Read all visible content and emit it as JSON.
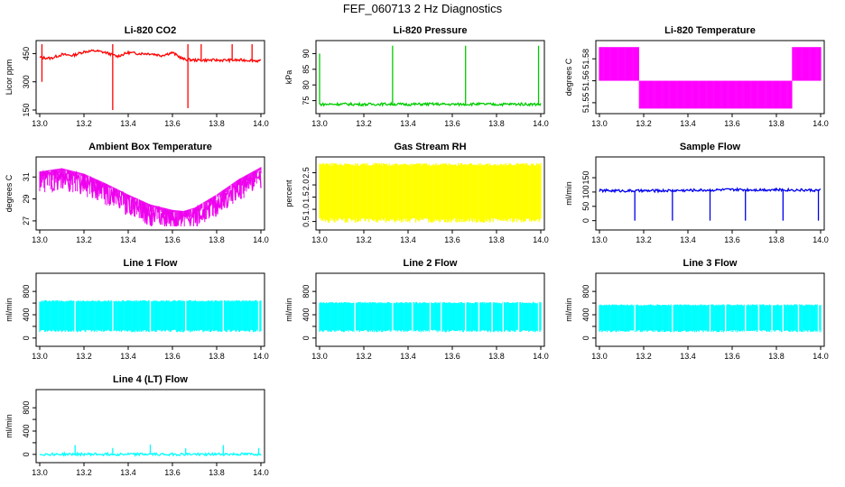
{
  "page_title": "FEF_060713  2 Hz Diagnostics",
  "chart_data": [
    {
      "type": "line",
      "title": "Li-820 CO2",
      "ylabel": "Licor ppm",
      "color": "#ff0000",
      "xlim": [
        13.0,
        14.0
      ],
      "ylim": [
        150,
        500
      ],
      "xticks": [
        13.0,
        13.2,
        13.4,
        13.6,
        13.8,
        14.0
      ],
      "yticks": [
        150,
        300,
        450
      ],
      "ytick_labels": [
        "150",
        "300",
        "450"
      ],
      "series": [
        {
          "x": [
            13.0,
            13.05,
            13.1,
            13.15,
            13.2,
            13.25,
            13.3,
            13.35,
            13.4,
            13.45,
            13.5,
            13.55,
            13.6,
            13.65,
            13.7,
            13.75,
            13.8,
            13.85,
            13.9,
            13.95,
            14.0
          ],
          "y": [
            430,
            425,
            445,
            440,
            460,
            465,
            455,
            435,
            455,
            450,
            450,
            440,
            455,
            420,
            415,
            415,
            415,
            415,
            415,
            415,
            410
          ],
          "spikes": [
            [
              13.01,
              300
            ],
            [
              13.01,
              500
            ],
            [
              13.33,
              150
            ],
            [
              13.33,
              500
            ],
            [
              13.67,
              160
            ],
            [
              13.67,
              500
            ],
            [
              13.73,
              500
            ],
            [
              13.87,
              500
            ],
            [
              13.96,
              500
            ]
          ]
        }
      ]
    },
    {
      "type": "line",
      "title": "Li-820 Pressure",
      "ylabel": "kPa",
      "color": "#00cc00",
      "xlim": [
        13.0,
        14.0
      ],
      "ylim": [
        72,
        93
      ],
      "xticks": [
        13.0,
        13.2,
        13.4,
        13.6,
        13.8,
        14.0
      ],
      "yticks": [
        75,
        80,
        85,
        90
      ],
      "ytick_labels": [
        "75",
        "80",
        "85",
        "90"
      ],
      "series": [
        {
          "x": [
            13.0,
            13.1,
            13.2,
            13.3,
            13.4,
            13.5,
            13.6,
            13.7,
            13.8,
            13.9,
            14.0
          ],
          "y": [
            73.8,
            73.9,
            73.8,
            73.9,
            73.8,
            73.9,
            73.8,
            73.9,
            73.8,
            73.9,
            73.8
          ],
          "spikes": [
            [
              13.0,
              90
            ],
            [
              13.33,
              92.5
            ],
            [
              13.66,
              92.5
            ],
            [
              13.99,
              92.5
            ]
          ]
        }
      ]
    },
    {
      "type": "line",
      "title": "Li-820 Temperature",
      "ylabel": "degrees C",
      "color": "#ff00ff",
      "xlim": [
        13.0,
        14.0
      ],
      "ylim": [
        51.545,
        51.59
      ],
      "xticks": [
        13.0,
        13.2,
        13.4,
        13.6,
        13.8,
        14.0
      ],
      "yticks": [
        51.55,
        51.565,
        51.58
      ],
      "ytick_labels": [
        "51.55",
        "51.56",
        "51.58"
      ],
      "series": [
        {
          "x": [
            13.0,
            13.15,
            13.2,
            13.25,
            13.45,
            13.6,
            13.75,
            13.85,
            13.9,
            14.0
          ],
          "y": [
            51.588,
            51.588,
            51.565,
            51.565,
            51.565,
            51.565,
            51.565,
            51.565,
            51.588,
            51.588
          ],
          "band": [
            51.565,
            51.588
          ]
        }
      ]
    },
    {
      "type": "line",
      "title": "Ambient Box Temperature",
      "ylabel": "degrees C",
      "color": "#ee00ee",
      "xlim": [
        13.0,
        14.0
      ],
      "ylim": [
        26.5,
        32.5
      ],
      "xticks": [
        13.0,
        13.2,
        13.4,
        13.6,
        13.8,
        14.0
      ],
      "yticks": [
        27,
        29,
        31
      ],
      "ytick_labels": [
        "27",
        "29",
        "31"
      ],
      "series": [
        {
          "x": [
            13.0,
            13.1,
            13.2,
            13.3,
            13.4,
            13.5,
            13.6,
            13.65,
            13.7,
            13.8,
            13.9,
            14.0
          ],
          "y": [
            31.5,
            31.8,
            31.3,
            30.4,
            29.4,
            28.5,
            28.0,
            27.9,
            28.2,
            29.4,
            30.8,
            31.9
          ],
          "dips": 2.0
        }
      ]
    },
    {
      "type": "line",
      "title": "Gas Stream RH",
      "ylabel": "percent",
      "color": "#ffff00",
      "xlim": [
        13.0,
        14.0
      ],
      "ylim": [
        0.3,
        3.0
      ],
      "xticks": [
        13.0,
        13.2,
        13.4,
        13.6,
        13.8,
        14.0
      ],
      "yticks": [
        0.5,
        1.0,
        1.5,
        2.0,
        2.5
      ],
      "ytick_labels": [
        "0.5",
        "1.0",
        "1.5",
        "2.0",
        "2.5"
      ],
      "series": [
        {
          "x": [
            13.0,
            14.0
          ],
          "y": [
            2.5,
            2.5
          ],
          "band": [
            0.45,
            2.9
          ]
        }
      ]
    },
    {
      "type": "line",
      "title": "Sample Flow",
      "ylabel": "ml/min",
      "color": "#0000ee",
      "xlim": [
        13.0,
        14.0
      ],
      "ylim": [
        -20,
        210
      ],
      "xticks": [
        13.0,
        13.2,
        13.4,
        13.6,
        13.8,
        14.0
      ],
      "yticks": [
        0,
        50,
        100,
        150
      ],
      "ytick_labels": [
        "0",
        "50",
        "100",
        "150"
      ],
      "series": [
        {
          "x": [
            13.0,
            13.2,
            13.4,
            13.6,
            13.8,
            14.0
          ],
          "y": [
            105,
            104,
            106,
            108,
            108,
            106
          ],
          "spikes": [
            [
              13.16,
              0
            ],
            [
              13.33,
              0
            ],
            [
              13.5,
              0
            ],
            [
              13.66,
              0
            ],
            [
              13.83,
              0
            ],
            [
              13.99,
              0
            ]
          ]
        }
      ]
    },
    {
      "type": "line",
      "title": "Line 1 Flow",
      "ylabel": "ml/min",
      "color": "#00ffff",
      "xlim": [
        13.0,
        14.0
      ],
      "ylim": [
        -80,
        1050
      ],
      "xticks": [
        13.0,
        13.2,
        13.4,
        13.6,
        13.8,
        14.0
      ],
      "yticks": [
        0,
        200,
        400,
        600,
        800
      ],
      "ytick_labels": [
        "0",
        "400",
        "800"
      ],
      "series": [
        {
          "x": [
            13.0,
            14.0
          ],
          "y": [
            650,
            650
          ],
          "band": [
            100,
            650
          ],
          "gaps": [
            13.16,
            13.33,
            13.5,
            13.66,
            13.83,
            13.99
          ]
        }
      ]
    },
    {
      "type": "line",
      "title": "Line 2 Flow",
      "ylabel": "ml/min",
      "color": "#00ffff",
      "xlim": [
        13.0,
        14.0
      ],
      "ylim": [
        -80,
        1050
      ],
      "xticks": [
        13.0,
        13.2,
        13.4,
        13.6,
        13.8,
        14.0
      ],
      "yticks": [
        0,
        200,
        400,
        600,
        800
      ],
      "ytick_labels": [
        "0",
        "400",
        "800"
      ],
      "series": [
        {
          "x": [
            13.0,
            14.0
          ],
          "y": [
            620,
            620
          ],
          "band": [
            100,
            620
          ],
          "gaps": [
            13.16,
            13.33,
            13.42,
            13.5,
            13.55,
            13.66,
            13.72,
            13.78,
            13.83,
            13.9,
            13.99
          ]
        }
      ]
    },
    {
      "type": "line",
      "title": "Line 3 Flow",
      "ylabel": "ml/min",
      "color": "#00ffff",
      "xlim": [
        13.0,
        14.0
      ],
      "ylim": [
        -80,
        1050
      ],
      "xticks": [
        13.0,
        13.2,
        13.4,
        13.6,
        13.8,
        14.0
      ],
      "yticks": [
        0,
        200,
        400,
        600,
        800
      ],
      "ytick_labels": [
        "0",
        "400",
        "800"
      ],
      "series": [
        {
          "x": [
            13.0,
            14.0
          ],
          "y": [
            580,
            580
          ],
          "band": [
            100,
            580
          ],
          "gaps": [
            13.16,
            13.33,
            13.5,
            13.57,
            13.66,
            13.72,
            13.78,
            13.83,
            13.9,
            13.99
          ]
        }
      ]
    },
    {
      "type": "line",
      "title": "Line 4 (LT) Flow",
      "ylabel": "ml/min",
      "color": "#00ffff",
      "xlim": [
        13.0,
        14.0
      ],
      "ylim": [
        -80,
        1050
      ],
      "xticks": [
        13.0,
        13.2,
        13.4,
        13.6,
        13.8,
        14.0
      ],
      "yticks": [
        0,
        200,
        400,
        600,
        800
      ],
      "ytick_labels": [
        "0",
        "400",
        "800"
      ],
      "series": [
        {
          "x": [
            13.0,
            14.0
          ],
          "y": [
            2,
            2
          ],
          "spikes": [
            [
              13.16,
              160
            ],
            [
              13.33,
              110
            ],
            [
              13.5,
              170
            ],
            [
              13.66,
              105
            ],
            [
              13.83,
              160
            ],
            [
              13.99,
              110
            ]
          ]
        }
      ]
    }
  ]
}
